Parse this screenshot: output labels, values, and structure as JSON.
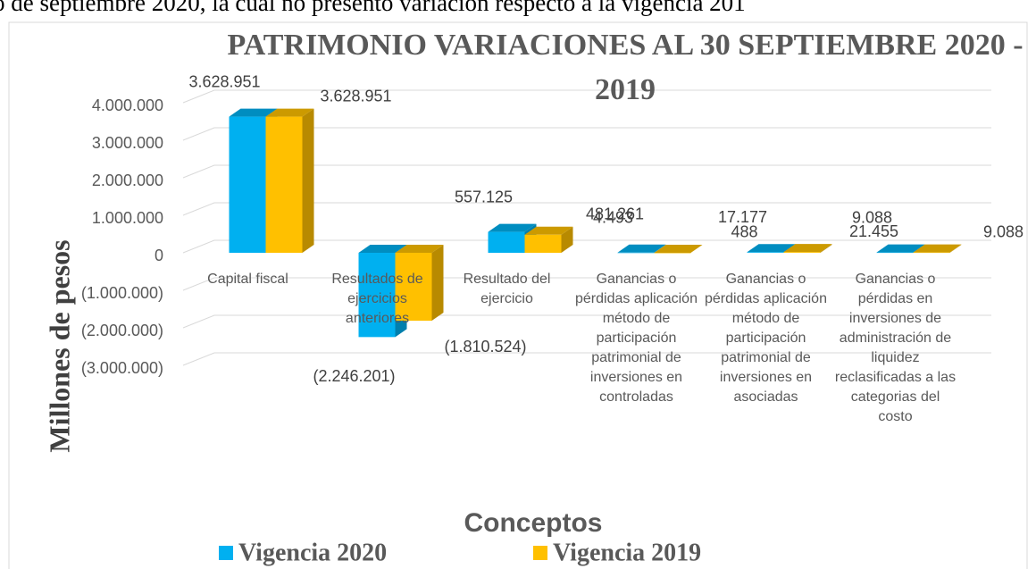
{
  "header_text": "o de septiembre 2020, la cual no presentó variación respecto a la vigencia 201",
  "chart_data": {
    "type": "bar3d",
    "title": "PATRIMONIO VARIACIONES AL 30 SEPTIEMBRE 2020 - 2019",
    "y_label": "Millones de pesos",
    "x_label": "Conceptos",
    "categories": [
      "Capital fiscal",
      "Resultados de ejercicios anteriores",
      "Resultado del ejercicio",
      "Ganancias o pérdidas aplicación método de participación patrimonial de inversiones en controladas",
      "Ganancias o pérdidas aplicación método de participación patrimonial de inversiones en asociadas",
      "Ganancias o pérdidas en inversiones de administración de liquidez reclasificadas a las categorias del costo"
    ],
    "series": [
      {
        "name": "Vigencia 2020",
        "color": "#00b0f0",
        "values": [
          3628951,
          -2246201,
          557125,
          4493,
          17177,
          9088
        ],
        "value_labels": [
          "3.628.951",
          "(2.246.201)",
          "557.125",
          "4.493",
          "17.177",
          "9.088"
        ]
      },
      {
        "name": "Vigencia 2019",
        "color": "#ffc000",
        "values": [
          3628951,
          -1810524,
          481261,
          488,
          21455,
          9088
        ],
        "value_labels": [
          "3.628.951",
          "(1.810.524)",
          "481.261",
          "488",
          "21.455",
          "9.088"
        ]
      }
    ],
    "ylim": [
      -3000000,
      4000000
    ],
    "yticks": [
      {
        "value": 4000000,
        "label": "4.000.000"
      },
      {
        "value": 3000000,
        "label": "3.000.000"
      },
      {
        "value": 2000000,
        "label": "2.000.000"
      },
      {
        "value": 1000000,
        "label": "1.000.000"
      },
      0,
      {
        "value": -1000000,
        "label": "(1.000.000)"
      },
      {
        "value": -2000000,
        "label": "(2.000.000)"
      },
      {
        "value": -3000000,
        "label": "(3.000.000)"
      }
    ],
    "grid": true,
    "legend": "bottom"
  }
}
